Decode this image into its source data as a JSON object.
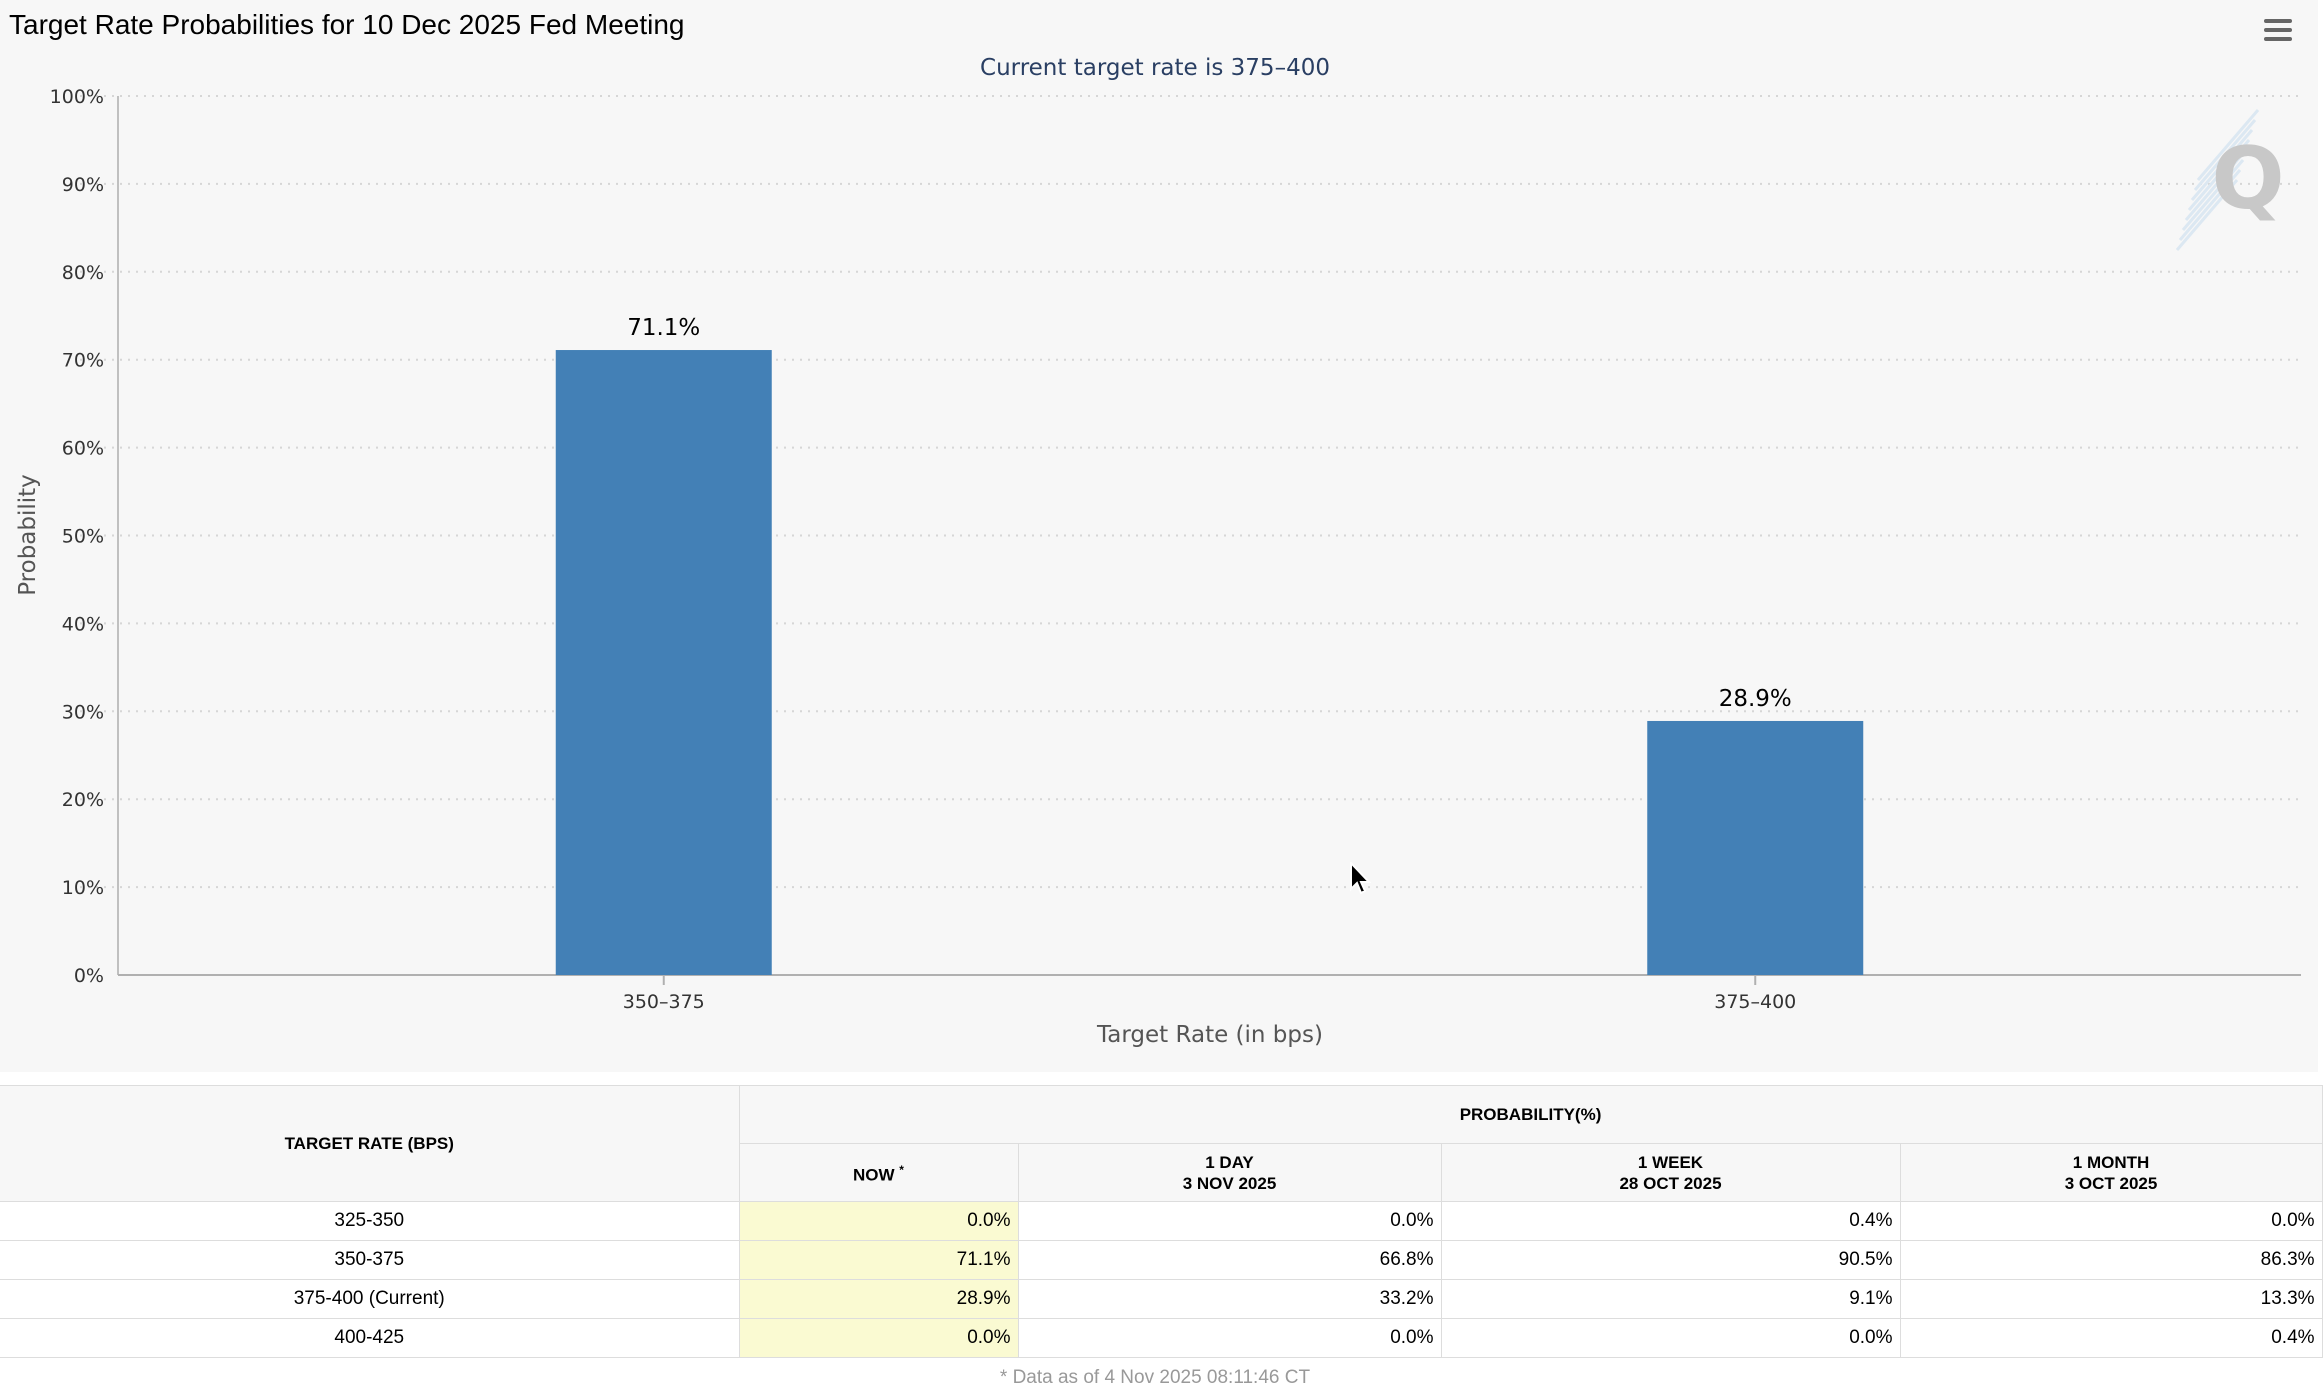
{
  "page": {
    "title": "Target Rate Probabilities for 10 Dec 2025 Fed Meeting",
    "menu_icon": "hamburger-menu-icon",
    "watermark_icon": "quikstrike-q-logo-icon",
    "watermark_text": "Q"
  },
  "chart_data": {
    "type": "bar",
    "title": "Current target rate is 375–400",
    "categories": [
      "350–375",
      "375–400"
    ],
    "values": [
      71.1,
      28.9
    ],
    "data_labels": [
      "71.1%",
      "28.9%"
    ],
    "xlabel": "Target Rate (in bps)",
    "ylabel": "Probability",
    "ylim": [
      0,
      100
    ],
    "yticks": [
      "0%",
      "10%",
      "20%",
      "30%",
      "40%",
      "50%",
      "60%",
      "70%",
      "80%",
      "90%",
      "100%"
    ],
    "grid": true,
    "bar_color": "#4380b6"
  },
  "table": {
    "header_rate": "TARGET RATE (BPS)",
    "header_probability": "PROBABILITY(%)",
    "columns": [
      {
        "line1": "NOW",
        "line2": ""
      },
      {
        "line1": "1 DAY",
        "line2": "3 NOV 2025"
      },
      {
        "line1": "1 WEEK",
        "line2": "28 OCT 2025"
      },
      {
        "line1": "1 MONTH",
        "line2": "3 OCT 2025"
      }
    ],
    "now_marker": "*",
    "rows": [
      {
        "rate": "325-350",
        "values": [
          "0.0%",
          "0.0%",
          "0.4%",
          "0.0%"
        ]
      },
      {
        "rate": "350-375",
        "values": [
          "71.1%",
          "66.8%",
          "90.5%",
          "86.3%"
        ]
      },
      {
        "rate": "375-400 (Current)",
        "values": [
          "28.9%",
          "33.2%",
          "9.1%",
          "13.3%"
        ]
      },
      {
        "rate": "400-425",
        "values": [
          "0.0%",
          "0.0%",
          "0.0%",
          "0.4%"
        ]
      }
    ],
    "highlight_color": "#fafad2"
  },
  "footnote": "* Data as of 4 Nov 2025 08:11:46 CT"
}
